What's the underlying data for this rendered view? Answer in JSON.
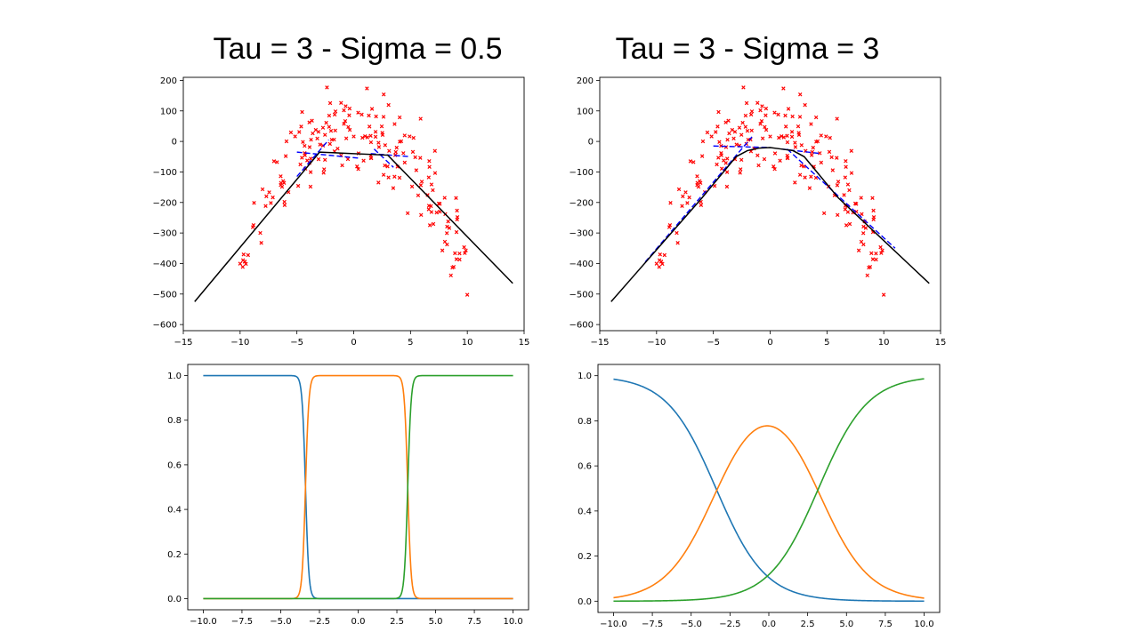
{
  "slide": {
    "title_left": "Tau = 3  -  Sigma = 0.5",
    "title_right": "Tau = 3  -  Sigma = 3"
  },
  "colors": {
    "scatter": "#ff0000",
    "fit_line": "#000000",
    "local_lines": "#0000ff",
    "series_1": "#1f77b4",
    "series_2": "#ff7f0e",
    "series_3": "#2ca02c"
  },
  "chart_data": [
    {
      "id": "top-left",
      "type": "scatter",
      "title": "",
      "xlabel": "",
      "ylabel": "",
      "xlim": [
        -15,
        15
      ],
      "ylim": [
        -620,
        210
      ],
      "xticks": [
        -15,
        -10,
        -5,
        0,
        5,
        10,
        15
      ],
      "xtick_labels": [
        "−15",
        "−10",
        "−5",
        "0",
        "5",
        "10",
        "15"
      ],
      "yticks": [
        200,
        100,
        0,
        -100,
        -200,
        -300,
        -400,
        -500,
        -600
      ],
      "ytick_labels": [
        "200",
        "100",
        "0",
        "−100",
        "−200",
        "−300",
        "−400",
        "−500",
        "−600"
      ],
      "scatter_note": "noisy samples of a downward parabola, x from -10 to 10",
      "fit_line": {
        "x": [
          -14,
          -3,
          3,
          14
        ],
        "y": [
          -525,
          -35,
          -45,
          -465
        ]
      },
      "local_lines": [
        {
          "x": [
            -5,
            -2.2
          ],
          "y": [
            -115,
            5
          ]
        },
        {
          "x": [
            -5,
            0.5
          ],
          "y": [
            -35,
            -55
          ]
        },
        {
          "x": [
            1.5,
            5
          ],
          "y": [
            -40,
            -50
          ]
        },
        {
          "x": [
            1.8,
            3.5
          ],
          "y": [
            -25,
            -85
          ]
        }
      ]
    },
    {
      "id": "top-right",
      "type": "scatter",
      "title": "",
      "xlabel": "",
      "ylabel": "",
      "xlim": [
        -15,
        15
      ],
      "ylim": [
        -620,
        210
      ],
      "xticks": [
        -15,
        -10,
        -5,
        0,
        5,
        10,
        15
      ],
      "xtick_labels": [
        "−15",
        "−10",
        "−5",
        "0",
        "5",
        "10",
        "15"
      ],
      "yticks": [
        200,
        100,
        0,
        -100,
        -200,
        -300,
        -400,
        -500,
        -600
      ],
      "ytick_labels": [
        "200",
        "100",
        "0",
        "−100",
        "−200",
        "−300",
        "−400",
        "−500",
        "−600"
      ],
      "scatter_note": "noisy samples of a downward parabola, x from -10 to 10",
      "fit_line": {
        "x": [
          -14,
          -12,
          -10,
          -8,
          -6,
          -5,
          -4,
          -3,
          -2,
          -1,
          0,
          1,
          2,
          3,
          4,
          5,
          6,
          8,
          10,
          12,
          14
        ],
        "y": [
          -525,
          -440,
          -355,
          -270,
          -185,
          -140,
          -95,
          -50,
          -30,
          -22,
          -20,
          -25,
          -30,
          -50,
          -95,
          -140,
          -185,
          -255,
          -325,
          -395,
          -465
        ]
      },
      "local_lines": [
        {
          "x": [
            -11,
            -1.6
          ],
          "y": [
            -395,
            15
          ]
        },
        {
          "x": [
            -5,
            0
          ],
          "y": [
            -15,
            -20
          ]
        },
        {
          "x": [
            1,
            4.5
          ],
          "y": [
            -25,
            -40
          ]
        },
        {
          "x": [
            1.5,
            11
          ],
          "y": [
            -25,
            -350
          ]
        }
      ]
    },
    {
      "id": "bottom-left",
      "type": "line",
      "title": "",
      "xlabel": "",
      "ylabel": "",
      "xlim": [
        -11,
        11
      ],
      "ylim": [
        -0.05,
        1.05
      ],
      "xticks": [
        -10,
        -7.5,
        -5,
        -2.5,
        0,
        2.5,
        5,
        7.5,
        10
      ],
      "xtick_labels": [
        "−10.0",
        "−7.5",
        "−5.0",
        "−2.5",
        "0.0",
        "2.5",
        "5.0",
        "7.5",
        "10.0"
      ],
      "yticks": [
        0,
        0.2,
        0.4,
        0.6,
        0.8,
        1.0
      ],
      "ytick_labels": [
        "0.0",
        "0.2",
        "0.4",
        "0.6",
        "0.8",
        "1.0"
      ],
      "centers": [
        -10,
        0,
        10
      ],
      "tau": 3,
      "sigma": 0.5
    },
    {
      "id": "bottom-right",
      "type": "line",
      "title": "",
      "xlabel": "",
      "ylabel": "",
      "xlim": [
        -11,
        11
      ],
      "ylim": [
        -0.05,
        1.05
      ],
      "xticks": [
        -10,
        -7.5,
        -5,
        -2.5,
        0,
        2.5,
        5,
        7.5,
        10
      ],
      "xtick_labels": [
        "−10.0",
        "−7.5",
        "−5.0",
        "−2.5",
        "0.0",
        "2.5",
        "5.0",
        "7.5",
        "10.0"
      ],
      "yticks": [
        0,
        0.2,
        0.4,
        0.6,
        0.8,
        1.0
      ],
      "ytick_labels": [
        "0.0",
        "0.2",
        "0.4",
        "0.6",
        "0.8",
        "1.0"
      ],
      "centers": [
        -10,
        0,
        10
      ],
      "tau": 3,
      "sigma": 3
    }
  ]
}
